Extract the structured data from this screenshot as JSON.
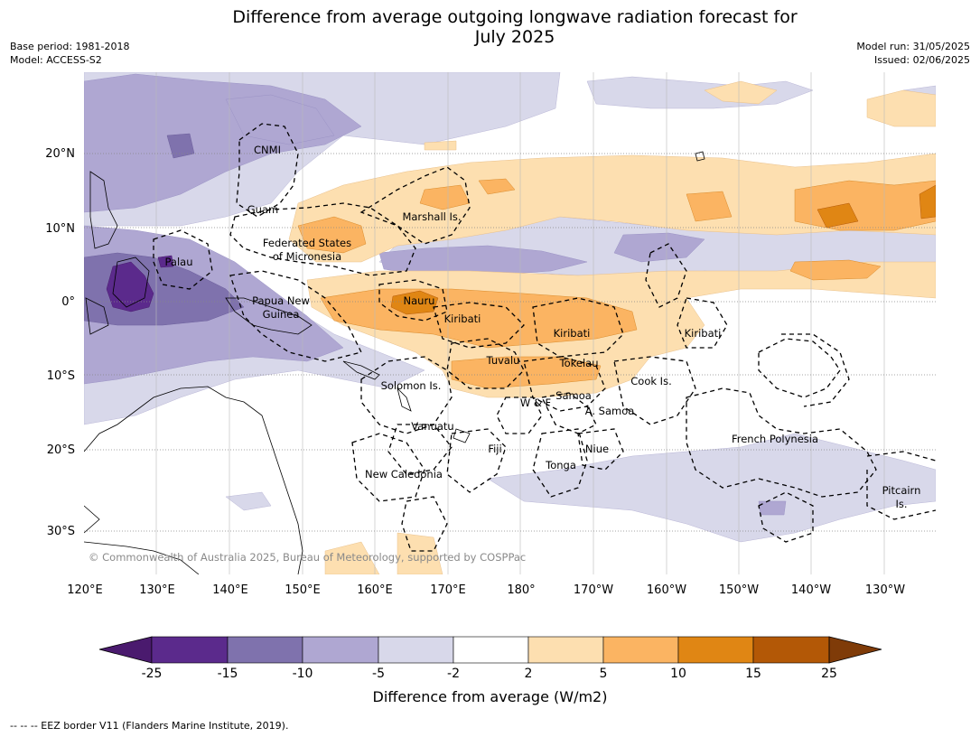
{
  "header": {
    "title_line1": "Difference from average outgoing longwave radiation forecast for",
    "title_line2": "July 2025",
    "base_period": "Base period: 1981-2018",
    "model": "Model: ACCESS-S2",
    "model_run": "Model run: 31/05/2025",
    "issued": "Issued: 02/06/2025"
  },
  "map": {
    "lon_labels": [
      "120°E",
      "130°E",
      "140°E",
      "150°E",
      "160°E",
      "170°E",
      "180°",
      "170°W",
      "160°W",
      "150°W",
      "140°W",
      "130°W"
    ],
    "lat_labels": [
      "20°N",
      "10°N",
      "0°",
      "10°S",
      "20°S",
      "30°S"
    ],
    "region_labels": [
      "CNMI",
      "Guam",
      "Marshall Is.",
      "Federated States",
      "of Micronesia",
      "Palau",
      "Papua New",
      "Guinea",
      "Nauru",
      "Kiribati",
      "Kiribati",
      "Kiribati",
      "Tuvalu",
      "Tokelau",
      "Solomon Is.",
      "Cook Is.",
      "Samoa",
      "W & F",
      "A. Samoa",
      "Vanuatu",
      "Fiji",
      "Niue",
      "Tonga",
      "French Polynesia",
      "New Caledonia",
      "Pitcairn",
      "Is."
    ],
    "copyright": "© Commonwealth of Australia 2025, Bureau of Meteorology, supported by COSPPac"
  },
  "colorbar": {
    "ticks": [
      "-25",
      "-15",
      "-10",
      "-5",
      "-2",
      "2",
      "5",
      "10",
      "15",
      "25"
    ],
    "colors": [
      "#4a1a6e",
      "#5b2a8c",
      "#7f72ad",
      "#afa7d2",
      "#d8d8ea",
      "#ffffff",
      "#fddfb0",
      "#fbb462",
      "#e08614",
      "#b35806",
      "#7f3b08"
    ],
    "label": "Difference from average (W/m2)"
  },
  "footer": {
    "legend_text": "--  --  -- EEZ border V11 (Flanders Marine Institute, 2019)."
  }
}
